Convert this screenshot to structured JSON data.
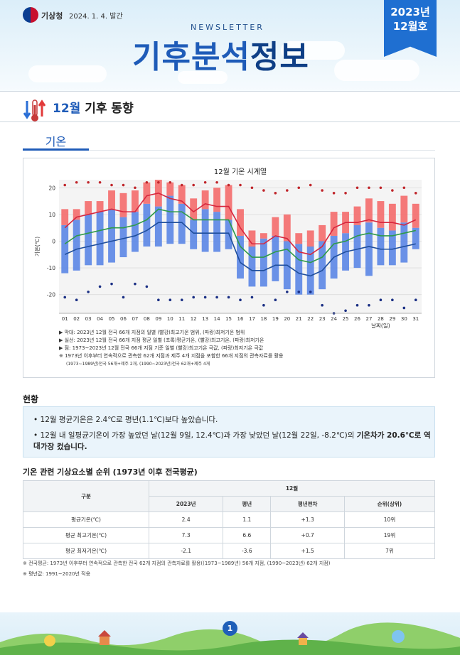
{
  "header": {
    "agency": "기상청",
    "date": "2024. 1. 4. 발간",
    "newsletter": "NEWSLETTER",
    "title_blue": "기후분석",
    "title_dark": "정보",
    "issue_year": "2023년",
    "issue_month": "12월호"
  },
  "section": {
    "month": "12월",
    "title": "기후 동향",
    "tab": "기온"
  },
  "chart_data": {
    "type": "bar",
    "title": "12월 기온 시계열",
    "ylabel": "기온(℃)",
    "xlabel": "날짜(일)",
    "ylim": [
      -27,
      23
    ],
    "yticks": [
      20,
      10,
      0,
      -10,
      -20
    ],
    "categories": [
      "01",
      "02",
      "03",
      "04",
      "05",
      "06",
      "07",
      "08",
      "09",
      "10",
      "11",
      "12",
      "13",
      "14",
      "15",
      "16",
      "17",
      "18",
      "19",
      "20",
      "21",
      "22",
      "23",
      "24",
      "25",
      "26",
      "27",
      "28",
      "29",
      "30",
      "31"
    ],
    "series": [
      {
        "name": "최고기온 범위",
        "color": "#f46b6b",
        "low": [
          6,
          8,
          10,
          11,
          12,
          9,
          11,
          14,
          13,
          17,
          14,
          8,
          12,
          11,
          8,
          2,
          -2,
          1,
          2,
          0,
          -1,
          -2,
          0,
          2,
          3,
          6,
          7,
          5,
          4,
          7,
          5
        ],
        "high": [
          12,
          12,
          15,
          15,
          19,
          18,
          19,
          22,
          23,
          22,
          21,
          16,
          19,
          20,
          21,
          12,
          4,
          3,
          9,
          10,
          3,
          4,
          6,
          11,
          11,
          13,
          16,
          15,
          14,
          17,
          14
        ]
      },
      {
        "name": "최저기온 범위",
        "color": "#5b86e5",
        "low": [
          -12,
          -11,
          -9,
          -9,
          -8,
          -6,
          -4,
          -2,
          -2,
          -1,
          -1,
          -3,
          -4,
          -4,
          -3,
          -14,
          -17,
          -17,
          -15,
          -18,
          -20,
          -20,
          -18,
          -14,
          -11,
          -10,
          -13,
          -9,
          -9,
          -8,
          -3
        ],
        "high": [
          6,
          8,
          10,
          11,
          12,
          9,
          11,
          14,
          13,
          17,
          14,
          8,
          12,
          11,
          8,
          2,
          -2,
          1,
          2,
          0,
          -1,
          -2,
          0,
          2,
          3,
          6,
          7,
          5,
          4,
          7,
          5
        ]
      },
      {
        "name": "평균 최고기온",
        "color": "#d7263d",
        "values": [
          5,
          9,
          10,
          11,
          12,
          11,
          11,
          17,
          18,
          16,
          15,
          11,
          14,
          13,
          13,
          5,
          -1,
          -1,
          2,
          1,
          -4,
          -5,
          -2,
          5,
          7,
          7,
          8,
          7,
          7,
          6,
          8
        ]
      },
      {
        "name": "평균기온",
        "color": "#2e9a48",
        "values": [
          -1,
          2,
          3,
          4,
          5,
          5,
          6,
          8,
          12,
          11,
          11,
          8,
          8,
          8,
          8,
          -2,
          -6,
          -6,
          -4,
          -3,
          -7,
          -8,
          -6,
          -1,
          0,
          2,
          3,
          2,
          2,
          3,
          4
        ]
      },
      {
        "name": "평균 최저기온",
        "color": "#1f4e9c",
        "values": [
          -5,
          -3,
          -2,
          -1,
          0,
          1,
          2,
          4,
          7,
          7,
          7,
          3,
          3,
          3,
          3,
          -8,
          -11,
          -11,
          -9,
          -9,
          -12,
          -13,
          -11,
          -6,
          -4,
          -3,
          -2,
          -3,
          -3,
          -2,
          -1
        ]
      },
      {
        "name": "최고기온 극값",
        "color": "#c0262b",
        "values": [
          21,
          22,
          22,
          22,
          21,
          21,
          20,
          22,
          22,
          22,
          21,
          21,
          22,
          22,
          21,
          21,
          20,
          19,
          18,
          19,
          20,
          21,
          19,
          18,
          18,
          20,
          20,
          20,
          19,
          20,
          18
        ]
      },
      {
        "name": "최저기온 극값",
        "color": "#1a2f84",
        "values": [
          -21,
          -22,
          -19,
          -17,
          -16,
          -21,
          -16,
          -17,
          -22,
          -22,
          -22,
          -21,
          -21,
          -21,
          -21,
          -22,
          -21,
          -24,
          -22,
          -19,
          -19,
          -19,
          -24,
          -27,
          -26,
          -24,
          -24,
          -22,
          -22,
          -25,
          -22
        ]
      }
    ],
    "notes": [
      "▶ 막대: 2023년 12월 전국 66개 지점의 일별 (빨강)최고기온 범위, (파랑)최저기온 범위",
      "▶ 실선: 2023년 12월 전국 66개 지점 평균 일별 (초록)평균기온, (빨강)최고기온, (파랑)최저기온",
      "▶ 점: 1973~2023년 12월 전국 66개 지점 기준 일별 (빨강)최고기온 극값, (파랑)최저기온 극값",
      "※ 1973년 이후부터 연속적으로 관측한 62개 지점과 제주 4개 지점을 포함한 66개 지점의 관측자료를 활용",
      "(1973~1989년)전국 56개+제주 2개, (1990~2023년)전국 62개+제주 4개"
    ]
  },
  "status": {
    "heading": "현황",
    "line1": "• 12월 평균기온은 2.4℃로 평년(1.1℃)보다 높았습니다.",
    "line2a": "• 12월 내 일평균기온이 가장 높았던 날(12월 9일, 12.4℃)과 가장 낮았던 날(12월 22일, -8.2℃)의 ",
    "line2b": "기온차가 20.6℃로 역대",
    "line2c": "가장 컸습니다."
  },
  "rank_table": {
    "heading": "기온 관련 기상요소별 순위 (1973년 이후 전국평균)",
    "h_category": "구분",
    "h_month": "12월",
    "cols": [
      "2023년",
      "평년",
      "평년편차",
      "순위(상위)"
    ],
    "rows": [
      {
        "name": "평균기온(℃)",
        "v2023": "2.4",
        "normal": "1.1",
        "diff": "+1.3",
        "rank": "10위"
      },
      {
        "name": "평균 최고기온(℃)",
        "v2023": "7.3",
        "normal": "6.6",
        "diff": "+0.7",
        "rank": "19위"
      },
      {
        "name": "평균 최저기온(℃)",
        "v2023": "-2.1",
        "normal": "-3.6",
        "diff": "+1.5",
        "rank": "7위"
      }
    ]
  },
  "footnotes": [
    "※ 전국평균: 1973년 이후부터 연속적으로 관측한 전국 62개 지점의 관측자료를 활용((1973~1989년) 56개 지점, (1990~2023년) 62개 지점)",
    "※ 평년값: 1991~2020년 적용"
  ],
  "page": "1"
}
